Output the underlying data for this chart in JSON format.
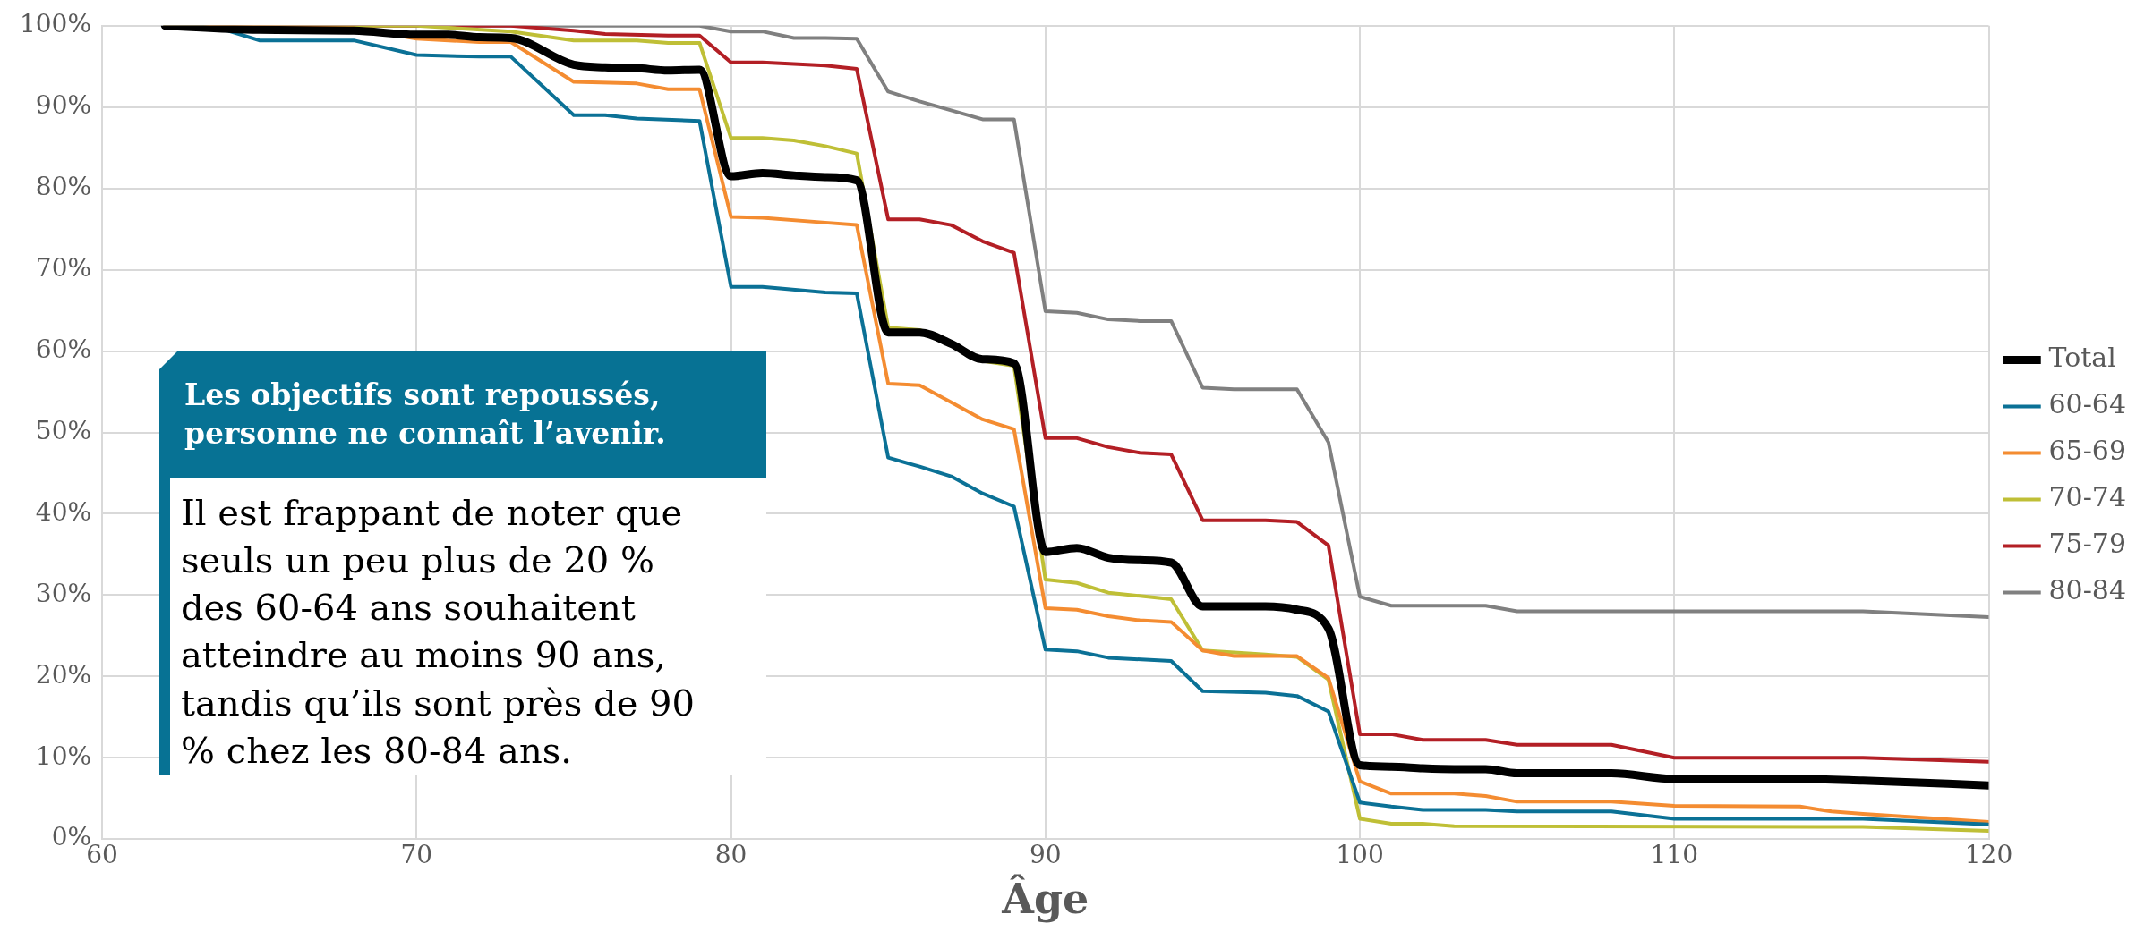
{
  "chart_data": {
    "type": "line",
    "xlabel": "Âge",
    "legend": "right",
    "grid": true,
    "marker": "none",
    "line_style": "solid",
    "xlim": [
      60,
      120
    ],
    "xticks": [
      60,
      70,
      80,
      90,
      100,
      110,
      120
    ],
    "ylim": [
      0,
      100
    ],
    "yticks": [
      {
        "value": 0,
        "label": "0%"
      },
      {
        "value": 10,
        "label": "10%"
      },
      {
        "value": 20,
        "label": "20%"
      },
      {
        "value": 30,
        "label": "30%"
      },
      {
        "value": 40,
        "label": "40%"
      },
      {
        "value": 50,
        "label": "50%"
      },
      {
        "value": 60,
        "label": "60%"
      },
      {
        "value": 70,
        "label": "70%"
      },
      {
        "value": 80,
        "label": "80%"
      },
      {
        "value": 90,
        "label": "90%"
      },
      {
        "value": 100,
        "label": "100%"
      }
    ],
    "annotations": [
      "Les objectifs sont repoussés, personne ne connaît l’avenir.",
      "Il est frappant de noter que seuls un peu plus de 20 % des 60-64 ans souhaitent atteindre au moins 90 ans, tandis qu’ils sont près de 90 % chez les 80-84 ans."
    ],
    "series": [
      {
        "name": "Total",
        "color": "#000000",
        "x": [
          62,
          65,
          68,
          70,
          71,
          72,
          73,
          75,
          76,
          77,
          78,
          79,
          80,
          81,
          82,
          83,
          84,
          85,
          86,
          87,
          88,
          89,
          90,
          91,
          92,
          93,
          94,
          95,
          96,
          97,
          98,
          99,
          100,
          101,
          102,
          103,
          104,
          105,
          108,
          110,
          114,
          116,
          120
        ],
        "values": [
          100,
          99.5,
          99.4,
          98.9,
          98.9,
          98.6,
          98.5,
          95.2,
          94.9,
          94.8,
          94.5,
          94.6,
          81.5,
          81.9,
          81.6,
          81.4,
          81,
          62.3,
          62.3,
          60.9,
          59,
          58.5,
          35.3,
          35.8,
          34.6,
          34.3,
          34,
          28.6,
          28.6,
          28.6,
          28.2,
          25.9,
          9.1,
          8.9,
          8.7,
          8.6,
          8.6,
          8.1,
          8.1,
          7.4,
          7.4,
          7.2,
          6.6
        ]
      },
      {
        "name": "60-64",
        "color": "#0b7196",
        "x": [
          62,
          63,
          64,
          65,
          68,
          70,
          72,
          73,
          75,
          76,
          77,
          79,
          80,
          81,
          83,
          84,
          85,
          86,
          87,
          88,
          89,
          90,
          91,
          92,
          94,
          95,
          97,
          98,
          99,
          100,
          101,
          102,
          104,
          105,
          108,
          110,
          116,
          120
        ],
        "values": [
          100,
          100,
          99.4,
          98.2,
          98.2,
          96.4,
          96.2,
          96.2,
          89,
          89,
          88.6,
          88.3,
          67.9,
          67.9,
          67.2,
          67.1,
          46.9,
          45.8,
          44.6,
          42.5,
          40.9,
          23.3,
          23.1,
          22.3,
          21.9,
          18.2,
          18,
          17.6,
          15.7,
          4.5,
          4,
          3.6,
          3.6,
          3.4,
          3.4,
          2.5,
          2.5,
          1.8
        ]
      },
      {
        "name": "65-69",
        "color": "#f48c31",
        "x": [
          62,
          68,
          70,
          72,
          73,
          75,
          77,
          78,
          79,
          80,
          81,
          83,
          84,
          85,
          86,
          87,
          88,
          89,
          90,
          91,
          92,
          93,
          94,
          95,
          96,
          98,
          99,
          100,
          101,
          103,
          104,
          105,
          108,
          110,
          114,
          115,
          116,
          120
        ],
        "values": [
          100,
          99.7,
          98.4,
          98,
          98,
          93.1,
          92.9,
          92.2,
          92.2,
          76.5,
          76.4,
          75.8,
          75.5,
          56,
          55.8,
          53.7,
          51.6,
          50.4,
          28.4,
          28.2,
          27.4,
          26.9,
          26.7,
          23.2,
          22.5,
          22.5,
          19.8,
          7.1,
          5.6,
          5.6,
          5.3,
          4.6,
          4.6,
          4.1,
          4,
          3.4,
          3.1,
          2.1
        ]
      },
      {
        "name": "70-74",
        "color": "#bfbf36",
        "x": [
          62,
          70,
          73,
          75,
          77,
          78,
          79,
          80,
          81,
          82,
          83,
          84,
          85,
          86,
          87,
          88,
          89,
          90,
          91,
          92,
          93,
          94,
          95,
          97,
          98,
          99,
          100,
          101,
          102,
          103,
          116,
          120
        ],
        "values": [
          100,
          100,
          99.3,
          98.2,
          98.2,
          97.9,
          97.9,
          86.2,
          86.2,
          85.9,
          85.2,
          84.3,
          62.9,
          62.6,
          60.9,
          58.8,
          58.2,
          31.9,
          31.5,
          30.3,
          29.9,
          29.5,
          23.2,
          22.7,
          22.4,
          19.6,
          2.5,
          1.9,
          1.9,
          1.6,
          1.5,
          1
        ]
      },
      {
        "name": "75-79",
        "color": "#b31f25",
        "x": [
          62,
          73,
          75,
          76,
          78,
          79,
          80,
          81,
          83,
          84,
          85,
          86,
          87,
          88,
          89,
          90,
          91,
          92,
          93,
          94,
          95,
          97,
          98,
          99,
          100,
          101,
          102,
          104,
          105,
          108,
          110,
          116,
          120
        ],
        "values": [
          100,
          100,
          99.4,
          99,
          98.8,
          98.8,
          95.5,
          95.5,
          95.1,
          94.7,
          76.2,
          76.2,
          75.5,
          73.5,
          72.1,
          49.3,
          49.3,
          48.2,
          47.5,
          47.3,
          39.2,
          39.2,
          39,
          36.1,
          12.9,
          12.9,
          12.2,
          12.2,
          11.6,
          11.6,
          10,
          10,
          9.5
        ]
      },
      {
        "name": "80-84",
        "color": "#808080",
        "x": [
          62,
          79,
          80,
          81,
          82,
          83,
          84,
          85,
          86,
          87,
          88,
          89,
          90,
          91,
          92,
          93,
          94,
          95,
          96,
          98,
          99,
          100,
          101,
          104,
          105,
          116,
          120
        ],
        "values": [
          100,
          100,
          99.3,
          99.3,
          98.5,
          98.5,
          98.4,
          91.9,
          90.7,
          89.6,
          88.5,
          88.5,
          64.9,
          64.7,
          63.9,
          63.7,
          63.7,
          55.5,
          55.3,
          55.3,
          48.8,
          29.8,
          28.7,
          28.7,
          28,
          28,
          27.3
        ]
      }
    ]
  }
}
